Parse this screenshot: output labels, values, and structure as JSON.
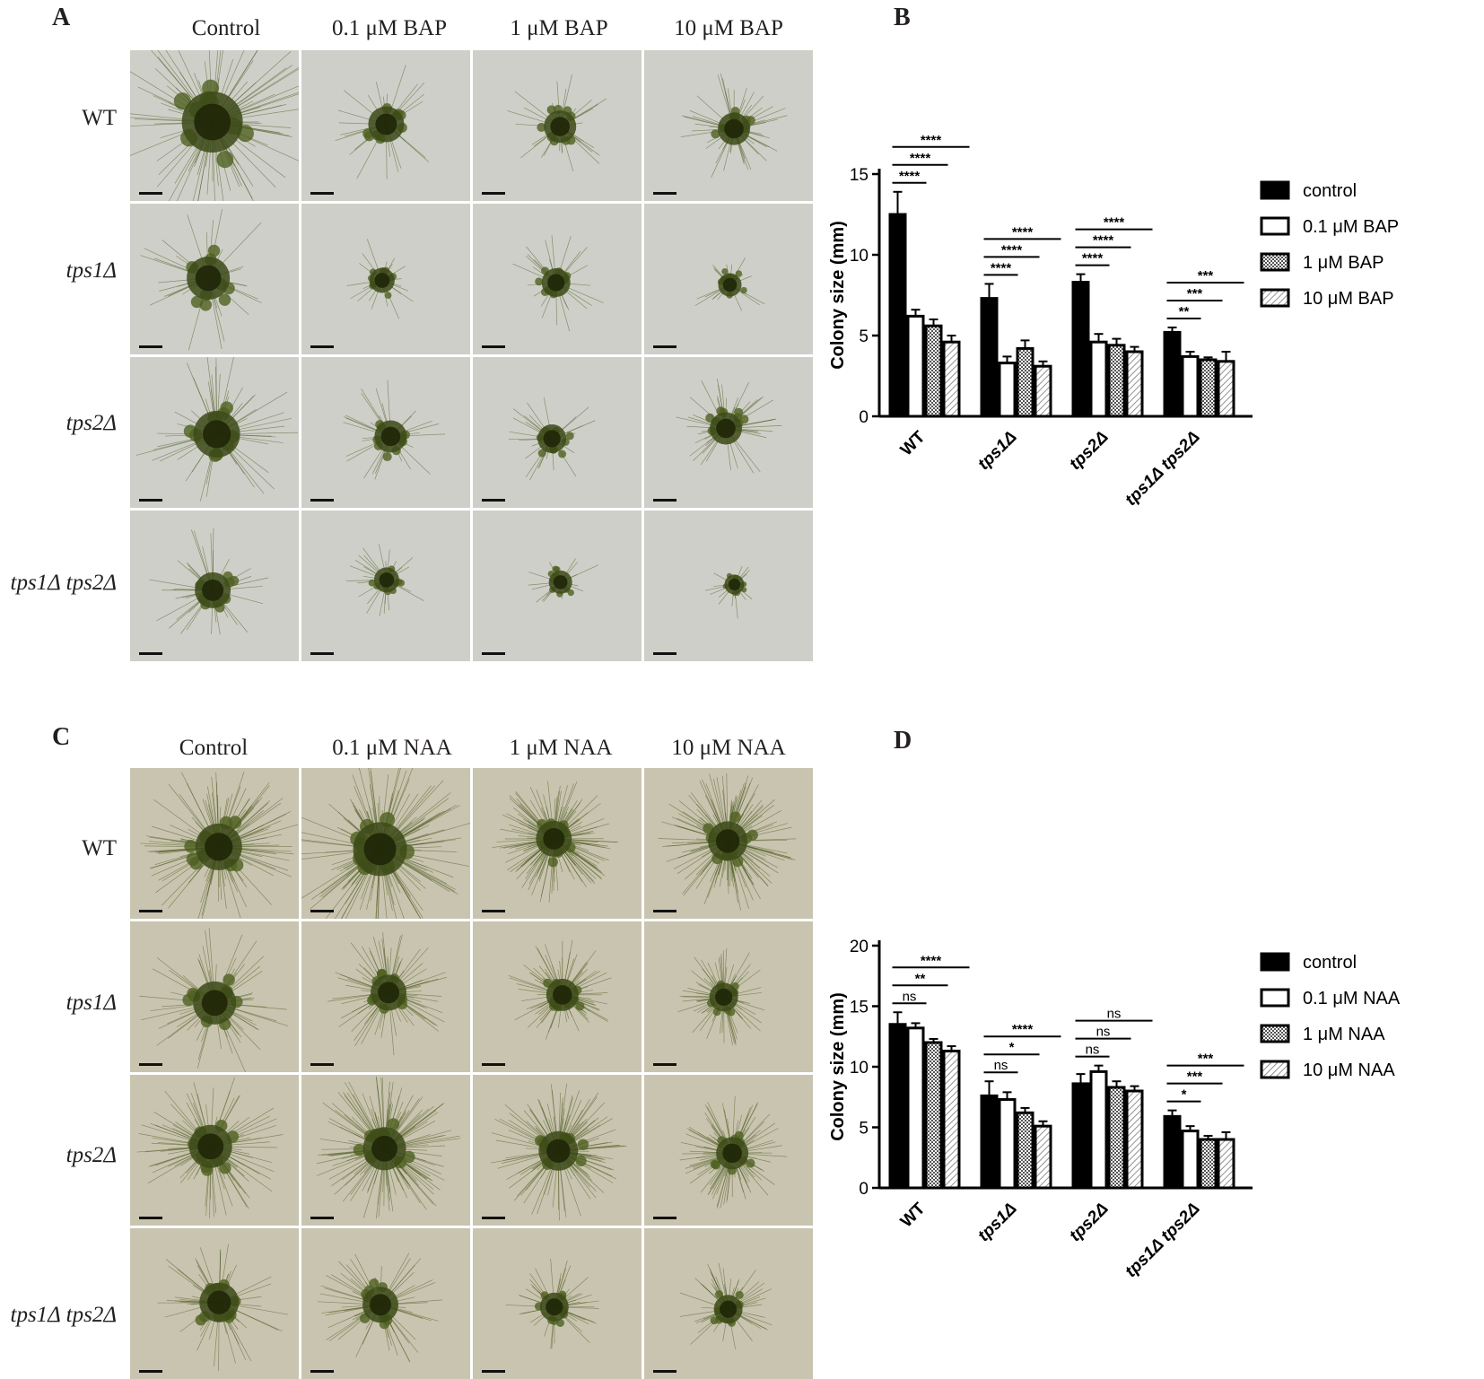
{
  "panels": {
    "A": "A",
    "B": "B",
    "C": "C",
    "D": "D"
  },
  "row_labels": [
    "WT",
    "tps1Δ",
    "tps2Δ",
    "tps1Δ tps2Δ"
  ],
  "panel_A": {
    "columns": [
      "Control",
      "0.1 μM BAP",
      "1 μM BAP",
      "10 μM BAP"
    ]
  },
  "panel_C": {
    "columns": [
      "Control",
      "0.1 μM NAA",
      "1 μM NAA",
      "10 μM NAA"
    ]
  },
  "colors": {
    "bar_black": "#000000",
    "moss_dark": "#2f3a12",
    "moss_mid": "#5a6a26",
    "bg_A": "#cfcfc9",
    "bg_C": "#c9c4b0"
  },
  "chart_data": [
    {
      "id": "B",
      "type": "bar",
      "title": "",
      "xlabel": "",
      "ylabel": "Colony size (mm)",
      "ylim": [
        0,
        15
      ],
      "yticks": [
        0,
        5,
        10,
        15
      ],
      "categories": [
        "WT",
        "tps1Δ",
        "tps2Δ",
        "tps1Δ tps2Δ"
      ],
      "legend_position": "right",
      "series": [
        {
          "name": "control",
          "pattern": "solid",
          "values": [
            12.5,
            7.3,
            8.3,
            5.2
          ],
          "errors": [
            1.4,
            0.9,
            0.5,
            0.3
          ]
        },
        {
          "name": "0.1 μM BAP",
          "pattern": "open",
          "values": [
            6.2,
            3.3,
            4.6,
            3.7
          ],
          "errors": [
            0.4,
            0.4,
            0.5,
            0.3
          ]
        },
        {
          "name": "1 μM BAP",
          "pattern": "checker",
          "values": [
            5.6,
            4.2,
            4.4,
            3.5
          ],
          "errors": [
            0.4,
            0.5,
            0.4,
            0.15
          ]
        },
        {
          "name": "10 μM BAP",
          "pattern": "hatch",
          "values": [
            4.6,
            3.1,
            4.0,
            3.4
          ],
          "errors": [
            0.4,
            0.3,
            0.3,
            0.6
          ]
        }
      ],
      "significance": [
        {
          "group": 0,
          "compare": 1,
          "label": "****"
        },
        {
          "group": 0,
          "compare": 2,
          "label": "****"
        },
        {
          "group": 0,
          "compare": 3,
          "label": "****"
        },
        {
          "group": 1,
          "compare": 1,
          "label": "****"
        },
        {
          "group": 1,
          "compare": 2,
          "label": "****"
        },
        {
          "group": 1,
          "compare": 3,
          "label": "****"
        },
        {
          "group": 2,
          "compare": 1,
          "label": "****"
        },
        {
          "group": 2,
          "compare": 2,
          "label": "****"
        },
        {
          "group": 2,
          "compare": 3,
          "label": "****"
        },
        {
          "group": 3,
          "compare": 1,
          "label": "**"
        },
        {
          "group": 3,
          "compare": 2,
          "label": "***"
        },
        {
          "group": 3,
          "compare": 3,
          "label": "***"
        }
      ]
    },
    {
      "id": "D",
      "type": "bar",
      "title": "",
      "xlabel": "",
      "ylabel": "Colony size (mm)",
      "ylim": [
        0,
        20
      ],
      "yticks": [
        0,
        5,
        10,
        15,
        20
      ],
      "categories": [
        "WT",
        "tps1Δ",
        "tps2Δ",
        "tps1Δ tps2Δ"
      ],
      "legend_position": "right",
      "series": [
        {
          "name": "control",
          "pattern": "solid",
          "values": [
            13.5,
            7.6,
            8.6,
            5.9
          ],
          "errors": [
            1.0,
            1.2,
            0.8,
            0.5
          ]
        },
        {
          "name": "0.1 μM NAA",
          "pattern": "open",
          "values": [
            13.2,
            7.3,
            9.6,
            4.7
          ],
          "errors": [
            0.4,
            0.6,
            0.5,
            0.4
          ]
        },
        {
          "name": "1 μM NAA",
          "pattern": "checker",
          "values": [
            12.0,
            6.2,
            8.3,
            4.0
          ],
          "errors": [
            0.3,
            0.4,
            0.5,
            0.3
          ]
        },
        {
          "name": "10 μM NAA",
          "pattern": "hatch",
          "values": [
            11.3,
            5.1,
            8.0,
            4.0
          ],
          "errors": [
            0.4,
            0.4,
            0.4,
            0.6
          ]
        }
      ],
      "significance": [
        {
          "group": 0,
          "compare": 1,
          "label": "ns"
        },
        {
          "group": 0,
          "compare": 2,
          "label": "**"
        },
        {
          "group": 0,
          "compare": 3,
          "label": "****"
        },
        {
          "group": 1,
          "compare": 1,
          "label": "ns"
        },
        {
          "group": 1,
          "compare": 2,
          "label": "*"
        },
        {
          "group": 1,
          "compare": 3,
          "label": "****"
        },
        {
          "group": 2,
          "compare": 1,
          "label": "ns"
        },
        {
          "group": 2,
          "compare": 2,
          "label": "ns"
        },
        {
          "group": 2,
          "compare": 3,
          "label": "ns"
        },
        {
          "group": 3,
          "compare": 1,
          "label": "*"
        },
        {
          "group": 3,
          "compare": 2,
          "label": "***"
        },
        {
          "group": 3,
          "compare": 3,
          "label": "***"
        }
      ]
    }
  ]
}
